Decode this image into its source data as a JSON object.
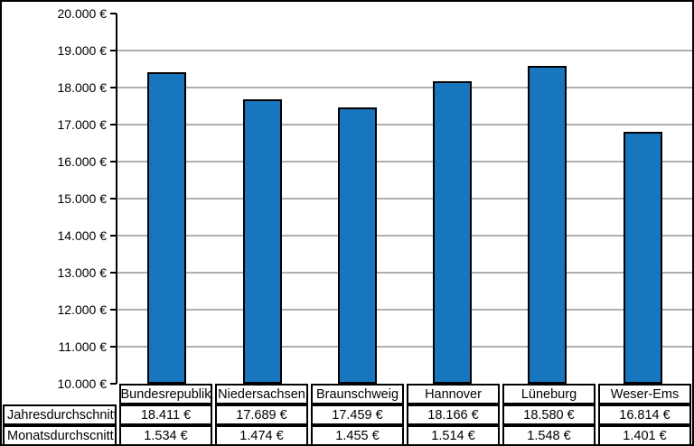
{
  "chart_data": {
    "type": "bar",
    "title": "",
    "xlabel": "",
    "ylabel": "",
    "categories": [
      "Bundesrepublik",
      "Niedersachsen",
      "Braunschweig",
      "Hannover",
      "Lüneburg",
      "Weser-Ems"
    ],
    "values": [
      18411,
      17689,
      17459,
      18166,
      18580,
      16814
    ],
    "ylim": [
      10000,
      20000
    ],
    "y_tick_step": 1000,
    "y_tick_labels": [
      "10.000 €",
      "11.000 €",
      "12.000 €",
      "13.000 €",
      "14.000 €",
      "15.000 €",
      "16.000 €",
      "17.000 €",
      "18.000 €",
      "19.000 €",
      "20.000 €"
    ],
    "grid": true,
    "legend_position": "none",
    "bar_color": "#1876BE",
    "bar_border_color": "#000000",
    "gridline_color": "#b0b0b0"
  },
  "table": {
    "rows": [
      {
        "label": "Jahresdurchschnitt",
        "values": [
          "18.411 €",
          "17.689 €",
          "17.459 €",
          "18.166 €",
          "18.580 €",
          "16.814 €"
        ]
      },
      {
        "label": "Monatsdurchscnitt",
        "values": [
          "1.534 €",
          "1.474 €",
          "1.455 €",
          "1.514 €",
          "1.548 €",
          "1.401 €"
        ]
      }
    ]
  }
}
